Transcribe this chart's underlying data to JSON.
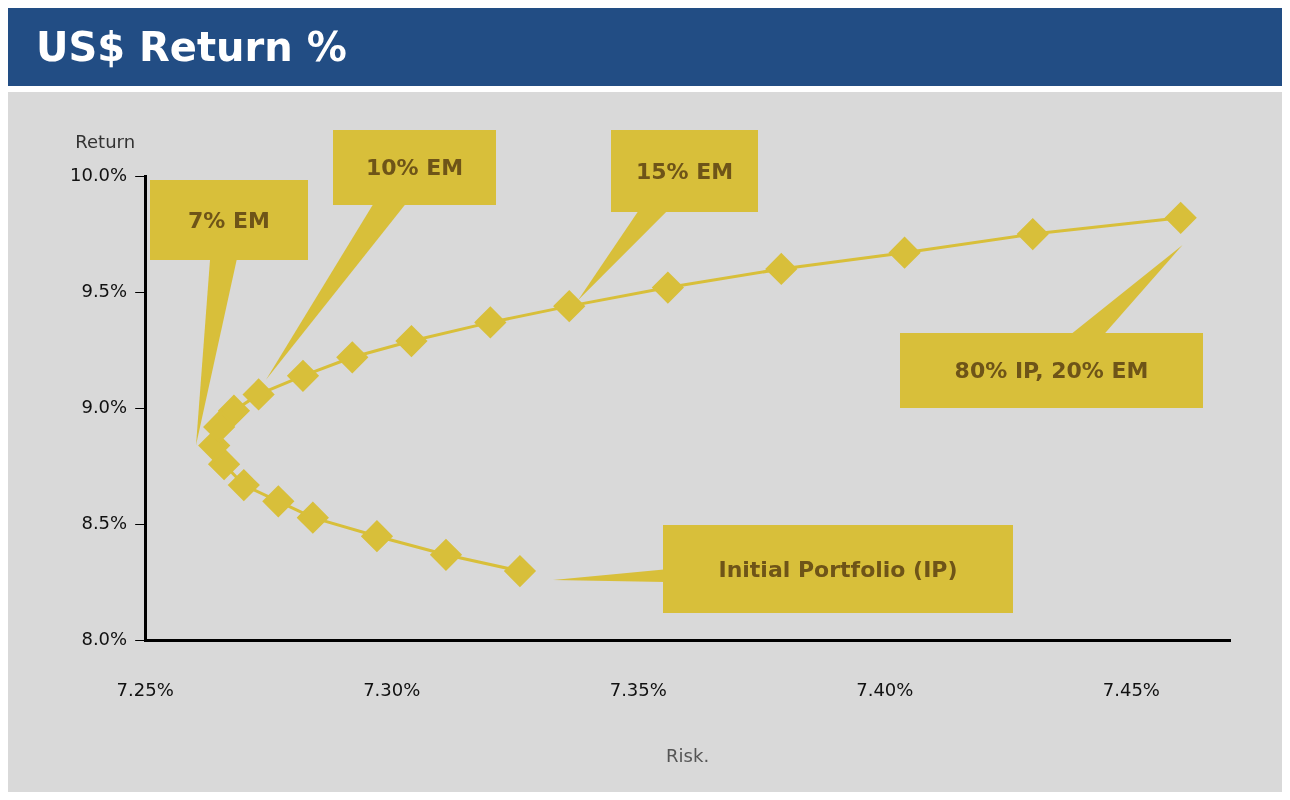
{
  "chart_data": {
    "type": "line",
    "title": "US$ Return %",
    "xlabel": "Risk.",
    "ylabel": "Return",
    "x": [
      7.326,
      7.311,
      7.297,
      7.284,
      7.277,
      7.27,
      7.266,
      7.264,
      7.265,
      7.268,
      7.273,
      7.282,
      7.292,
      7.304,
      7.32,
      7.336,
      7.356,
      7.379,
      7.404,
      7.43,
      7.46
    ],
    "series": [
      {
        "color": "#d8bf3a",
        "values": [
          8.3,
          8.37,
          8.45,
          8.53,
          8.6,
          8.67,
          8.76,
          8.84,
          8.92,
          8.99,
          9.06,
          9.14,
          9.22,
          9.29,
          9.37,
          9.44,
          9.52,
          9.6,
          9.67,
          9.75,
          9.82
        ]
      }
    ],
    "xlim": [
      7.25,
      7.47
    ],
    "xticks": [
      {
        "value": 7.25,
        "label": "7.25%"
      },
      {
        "value": 7.3,
        "label": "7.30%"
      },
      {
        "value": 7.35,
        "label": "7.35%"
      },
      {
        "value": 7.4,
        "label": "7.40%"
      },
      {
        "value": 7.45,
        "label": "7.45%"
      }
    ],
    "ylim": [
      8.0,
      10.0
    ],
    "yticks": [
      {
        "value": 8.0,
        "label": "8.0%"
      },
      {
        "value": 8.5,
        "label": "8.5%"
      },
      {
        "value": 9.0,
        "label": "9.0%"
      },
      {
        "value": 9.5,
        "label": "9.5%"
      },
      {
        "value": 10.0,
        "label": "10.0%"
      }
    ],
    "annotations": [
      "7% EM",
      "10% EM",
      "15% EM",
      "80% IP, 20% EM",
      "Initial Portfolio (IP)"
    ],
    "marker": "diamond",
    "line_style": "solid",
    "grid": false,
    "legend": false
  }
}
